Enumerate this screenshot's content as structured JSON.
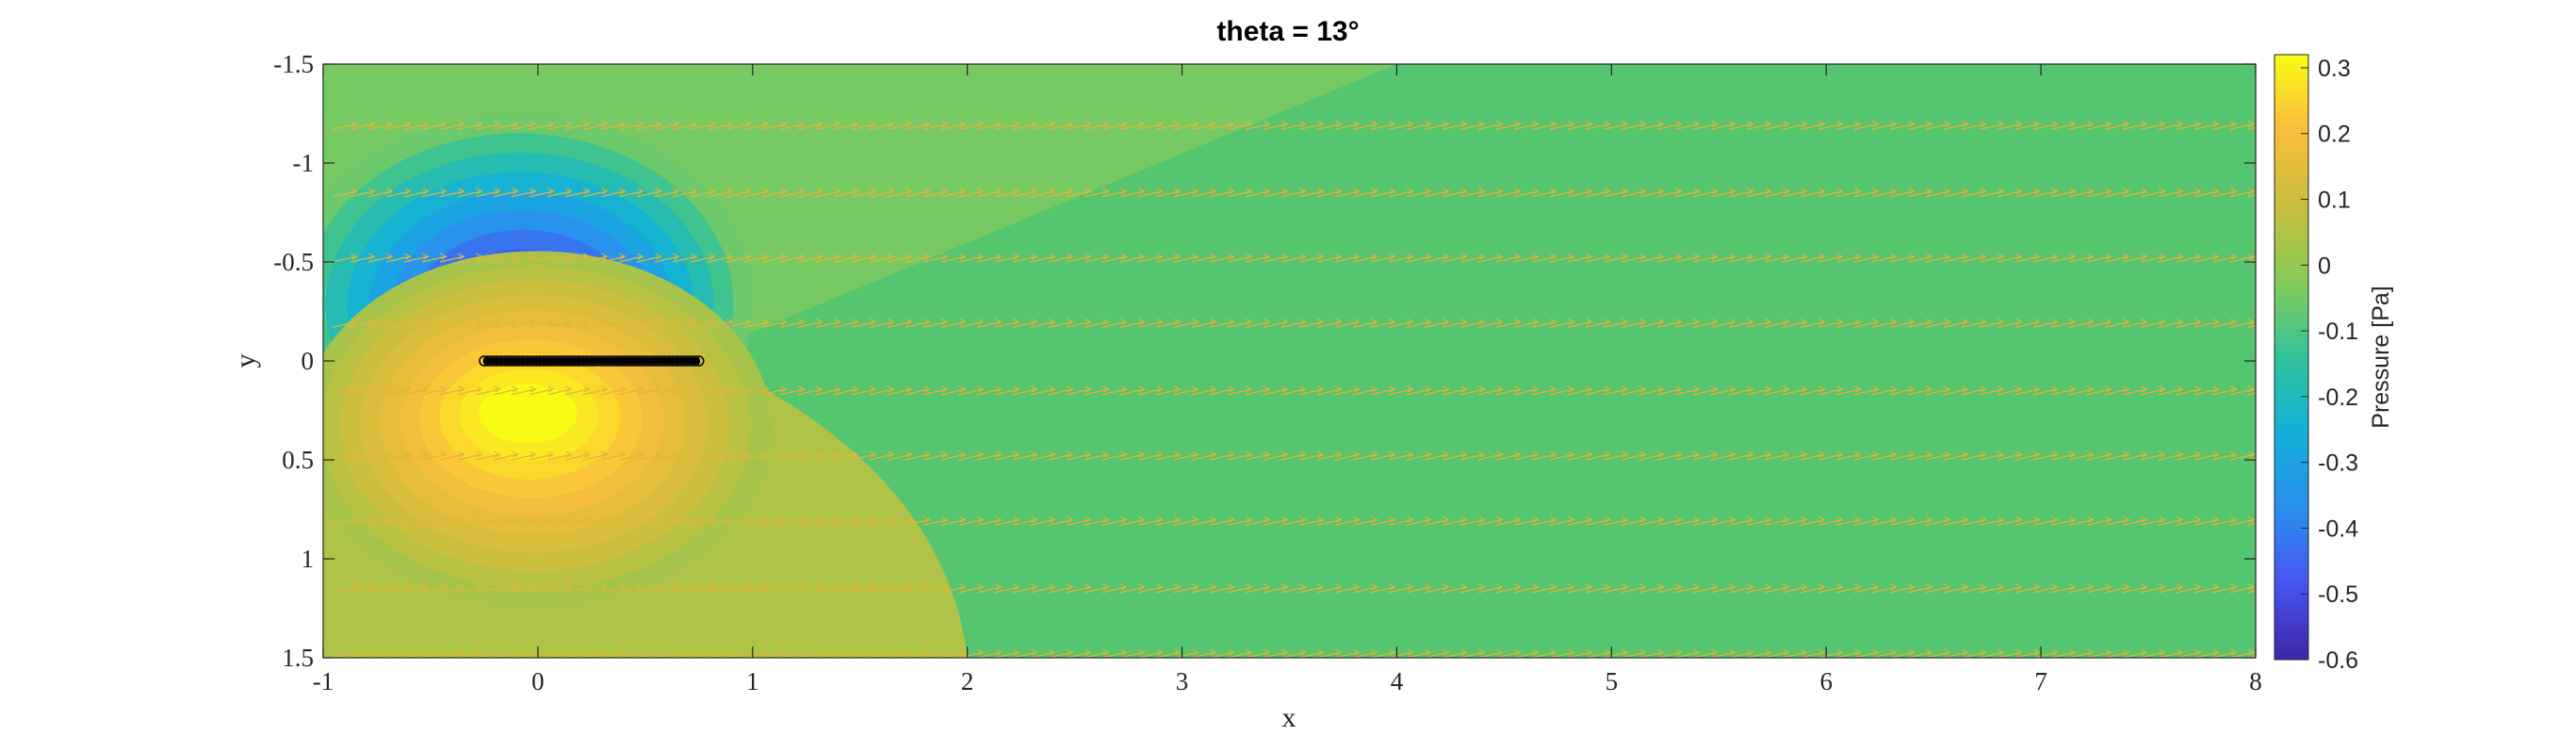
{
  "chart_data": {
    "type": "heatmap",
    "title": "theta = 13°",
    "xlabel": "x",
    "ylabel": "y",
    "xlim": [
      -1,
      8
    ],
    "ylim": [
      -1.5,
      1.5
    ],
    "y_reversed": true,
    "xticks": [
      -1,
      0,
      1,
      2,
      3,
      4,
      5,
      6,
      7,
      8
    ],
    "yticks": [
      -1.5,
      -1,
      -0.5,
      0,
      0.5,
      1,
      1.5
    ],
    "colorbar": {
      "label": "Pressure [Pa]",
      "limits": [
        -0.6,
        0.32
      ],
      "ticks": [
        0.3,
        0.2,
        0.1,
        0,
        -0.1,
        -0.2,
        -0.3,
        -0.4,
        -0.5,
        -0.6
      ],
      "colormap": "parula"
    },
    "plate": {
      "x_start": -0.25,
      "x_end": 0.75,
      "y": 0,
      "color": "#000000"
    },
    "pressure_sources": [
      {
        "x": -0.05,
        "y": -0.2,
        "p": -0.6
      },
      {
        "x": -0.05,
        "y": 0.25,
        "p": 0.32
      }
    ],
    "background_pressure": 0.0,
    "quiver_rows_y": [
      -1.5,
      -1.17,
      -0.83,
      -0.5,
      -0.17,
      0.17,
      0.5,
      0.83,
      1.17,
      1.5
    ],
    "quiver_color": "#e3b43a"
  }
}
